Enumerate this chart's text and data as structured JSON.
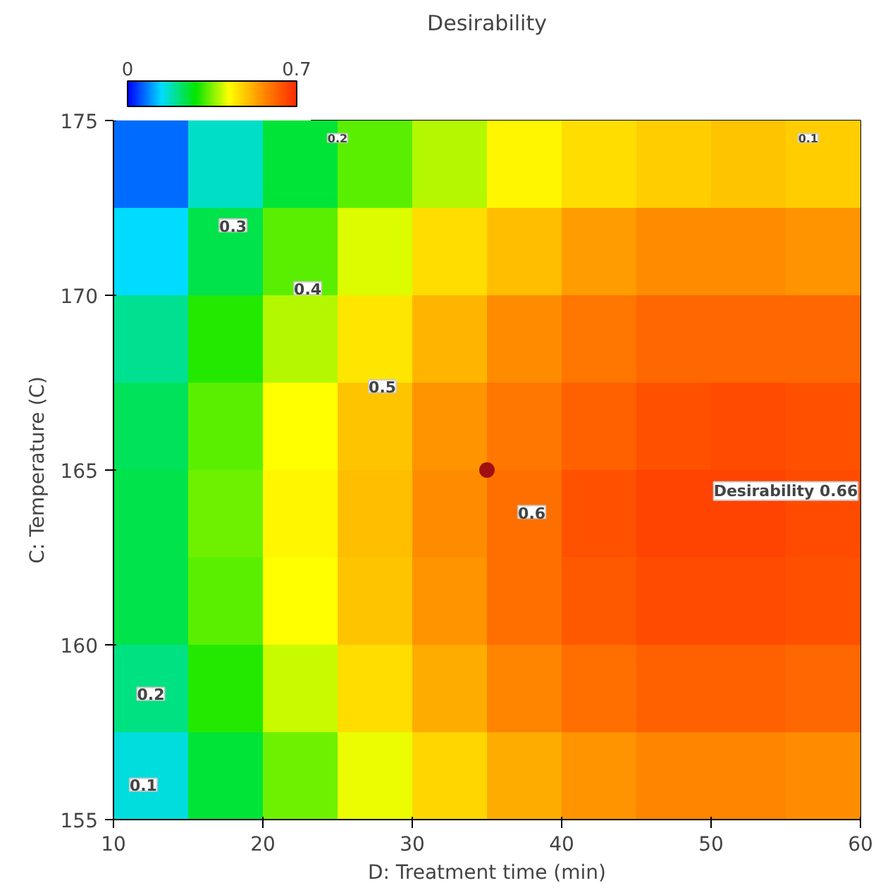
{
  "chart_data": {
    "type": "heatmap",
    "title": "Desirability",
    "xlabel": "D: Treatment time (min)",
    "ylabel": "C: Temperature (C)",
    "clabel": null,
    "x": [
      12.5,
      17.5,
      22.5,
      27.5,
      32.5,
      37.5,
      42.5,
      47.5,
      52.5,
      57.5
    ],
    "y": [
      173.75,
      171.25,
      168.75,
      166.25,
      163.75,
      161.25,
      158.75,
      156.25
    ],
    "xlim": [
      10,
      60
    ],
    "ylim": [
      155,
      175
    ],
    "xticks": [
      10,
      20,
      30,
      40,
      50,
      60
    ],
    "yticks": [
      155,
      160,
      165,
      170,
      175
    ],
    "clim": [
      0,
      0.7
    ],
    "cticks": [
      0,
      0.7
    ],
    "cells": [
      [
        0.07,
        0.17,
        0.25,
        0.33,
        0.38,
        0.43,
        0.46,
        0.48,
        0.49,
        0.48
      ],
      [
        0.14,
        0.24,
        0.33,
        0.4,
        0.46,
        0.5,
        0.54,
        0.56,
        0.56,
        0.55
      ],
      [
        0.2,
        0.3,
        0.38,
        0.45,
        0.51,
        0.56,
        0.59,
        0.61,
        0.61,
        0.61
      ],
      [
        0.23,
        0.33,
        0.42,
        0.49,
        0.55,
        0.59,
        0.62,
        0.64,
        0.65,
        0.64
      ],
      [
        0.24,
        0.34,
        0.43,
        0.5,
        0.56,
        0.6,
        0.64,
        0.66,
        0.66,
        0.65
      ],
      [
        0.24,
        0.33,
        0.42,
        0.49,
        0.55,
        0.6,
        0.63,
        0.65,
        0.65,
        0.64
      ],
      [
        0.21,
        0.3,
        0.39,
        0.46,
        0.52,
        0.57,
        0.6,
        0.62,
        0.62,
        0.61
      ],
      [
        0.16,
        0.25,
        0.34,
        0.41,
        0.47,
        0.52,
        0.55,
        0.57,
        0.57,
        0.56
      ]
    ],
    "series": [
      {
        "type": "scatter",
        "color": "#a01010",
        "x": [
          35
        ],
        "values": [
          165
        ]
      }
    ],
    "annotations": [
      "0.1",
      "0.2",
      "0.3",
      "0.4",
      "0.5",
      "0.6",
      "0.2",
      "0.1",
      "Desirability 0.66"
    ]
  }
}
